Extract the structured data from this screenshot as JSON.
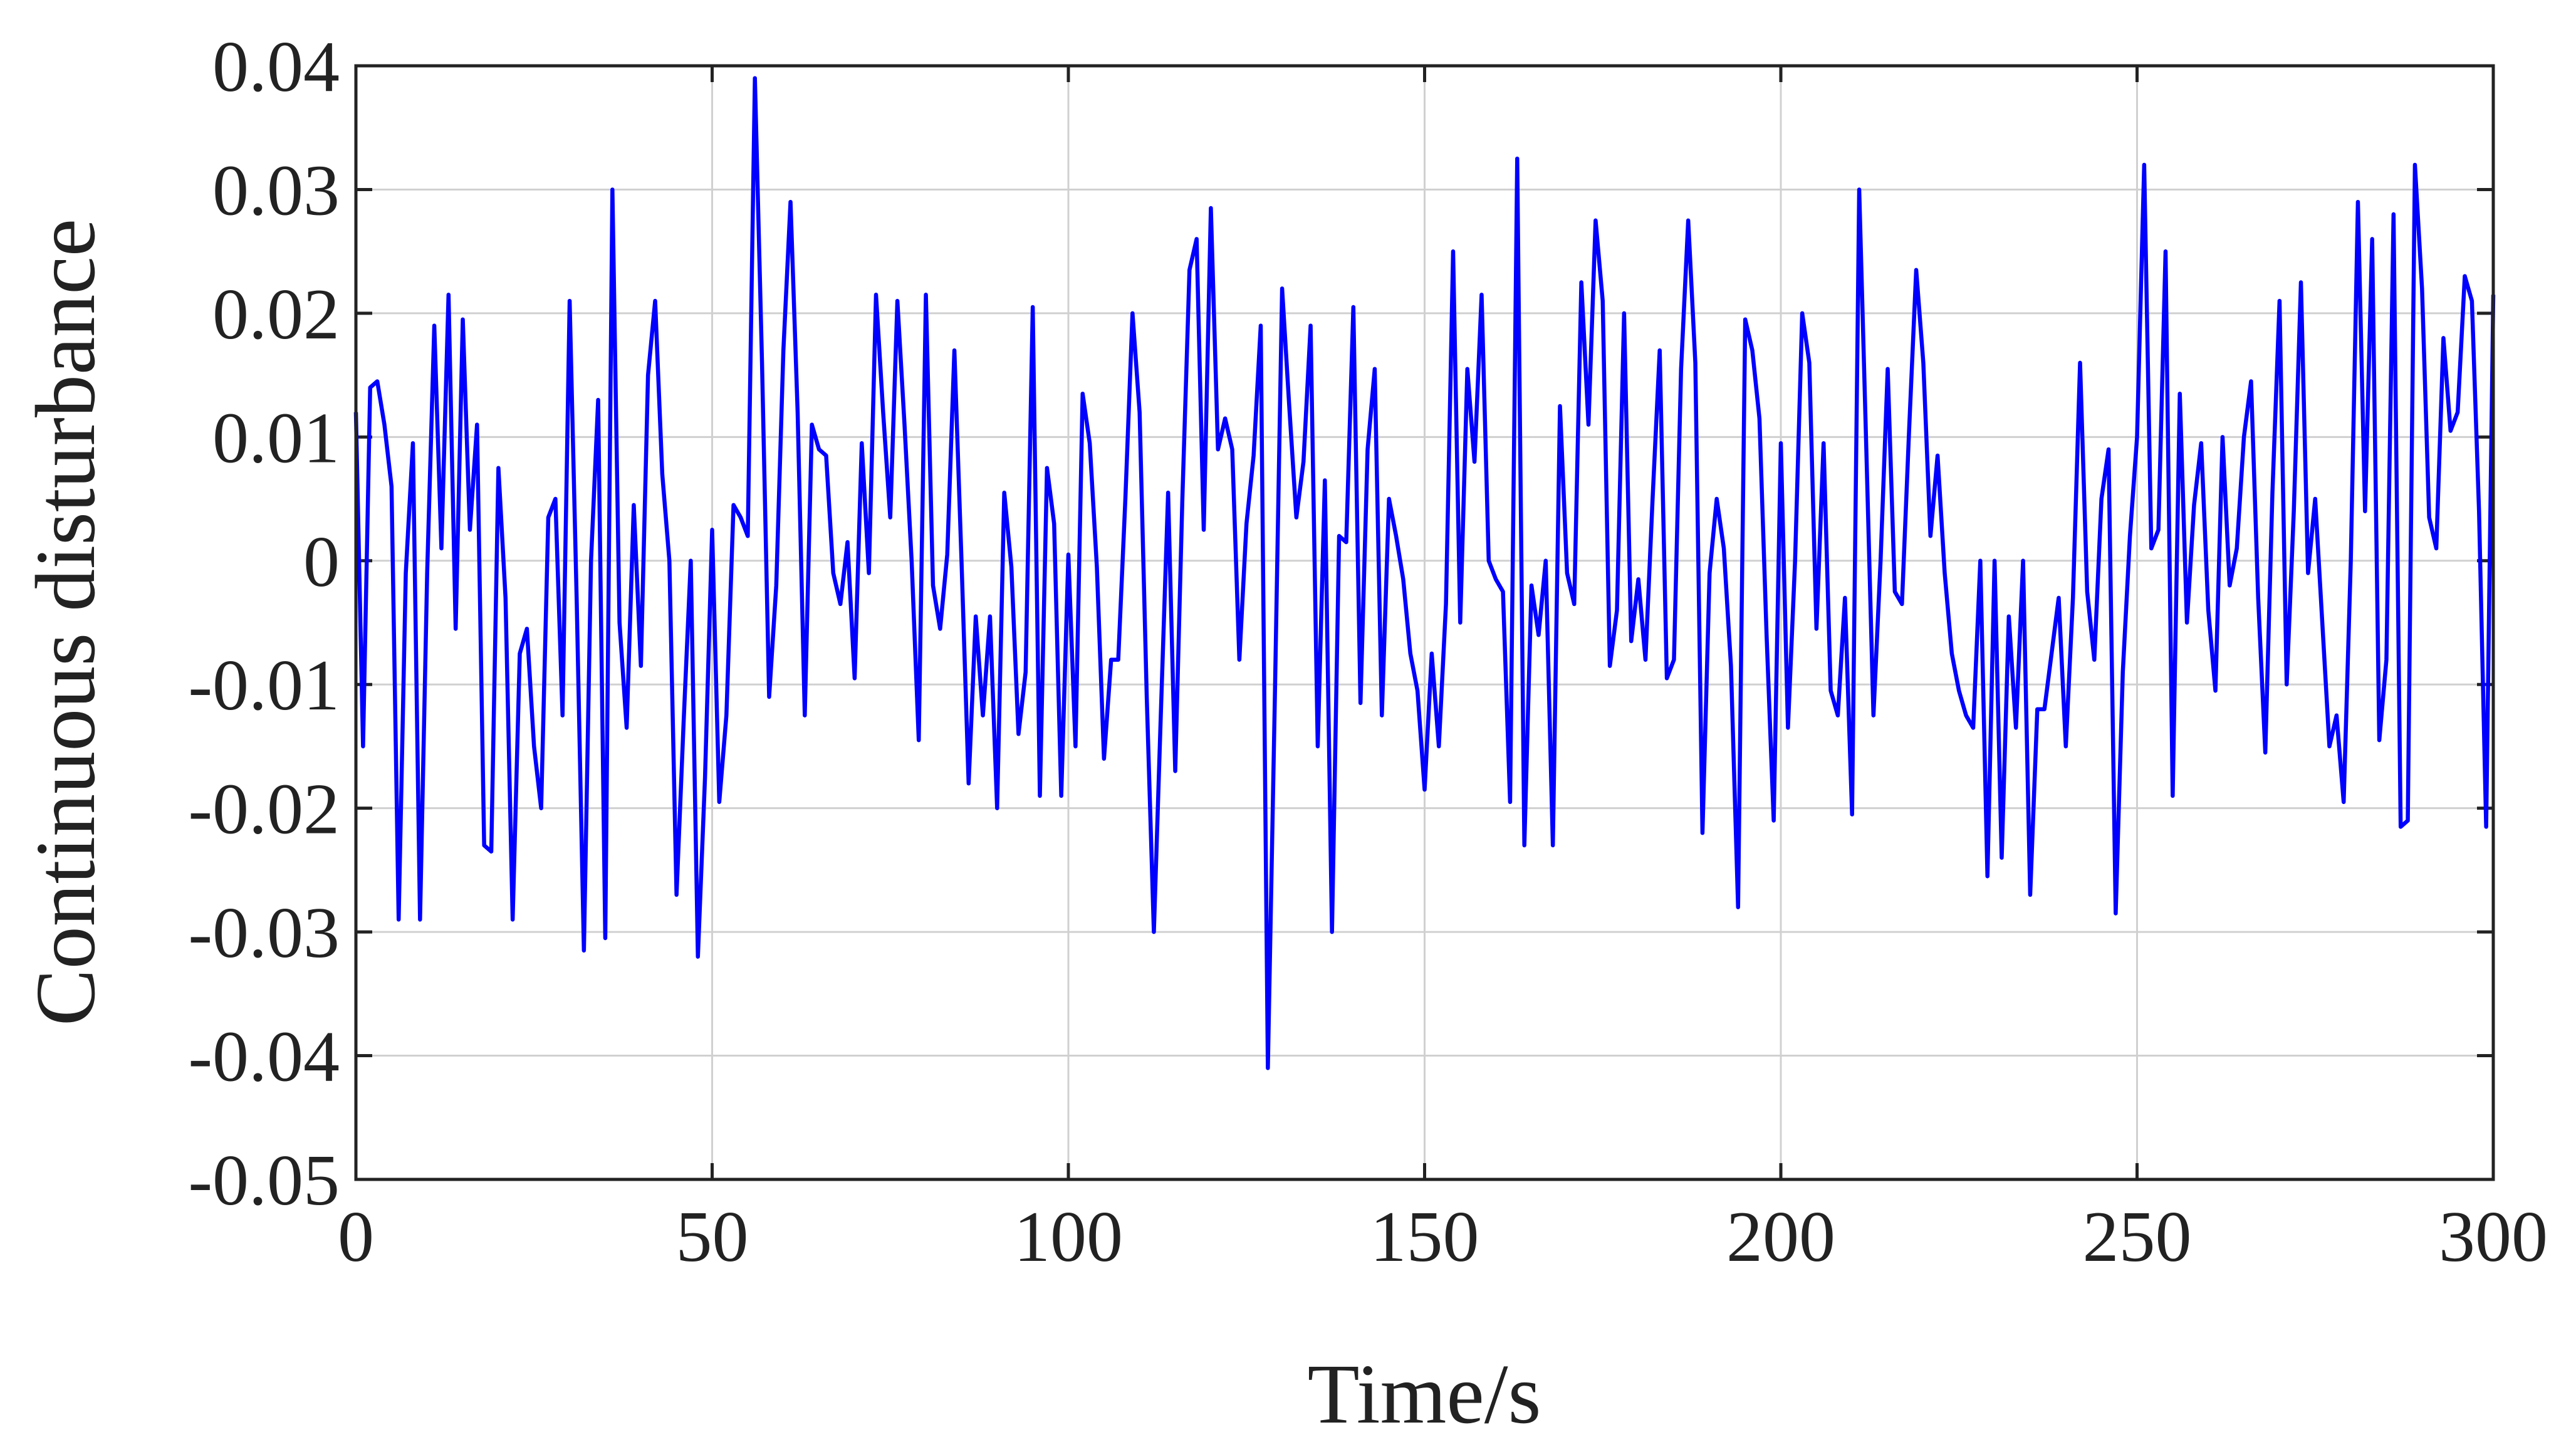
{
  "chart_data": {
    "type": "line",
    "xlabel": "Time/s",
    "ylabel": "Continuous disturbance",
    "color": "#0000ff",
    "grid": true,
    "xlim": [
      0,
      300
    ],
    "xticks": [
      0,
      50,
      100,
      150,
      200,
      250,
      300
    ],
    "ylim": [
      -0.05,
      0.04
    ],
    "yticks": [
      -0.05,
      -0.04,
      -0.03,
      -0.02,
      -0.01,
      0,
      0.01,
      0.02,
      0.03,
      0.04
    ],
    "x": [
      0,
      1,
      2,
      3,
      4,
      5,
      6,
      7,
      8,
      9,
      10,
      11,
      12,
      13,
      14,
      15,
      16,
      17,
      18,
      19,
      20,
      21,
      22,
      23,
      24,
      25,
      26,
      27,
      28,
      29,
      30,
      31,
      32,
      33,
      34,
      35,
      36,
      37,
      38,
      39,
      40,
      41,
      42,
      43,
      44,
      45,
      46,
      47,
      48,
      49,
      50,
      51,
      52,
      53,
      54,
      55,
      56,
      57,
      58,
      59,
      60,
      61,
      62,
      63,
      64,
      65,
      66,
      67,
      68,
      69,
      70,
      71,
      72,
      73,
      74,
      75,
      76,
      77,
      78,
      79,
      80,
      81,
      82,
      83,
      84,
      85,
      86,
      87,
      88,
      89,
      90,
      91,
      92,
      93,
      94,
      95,
      96,
      97,
      98,
      99,
      100,
      101,
      102,
      103,
      104,
      105,
      106,
      107,
      108,
      109,
      110,
      111,
      112,
      113,
      114,
      115,
      116,
      117,
      118,
      119,
      120,
      121,
      122,
      123,
      124,
      125,
      126,
      127,
      128,
      129,
      130,
      131,
      132,
      133,
      134,
      135,
      136,
      137,
      138,
      139,
      140,
      141,
      142,
      143,
      144,
      145,
      146,
      147,
      148,
      149,
      150,
      151,
      152,
      153,
      154,
      155,
      156,
      157,
      158,
      159,
      160,
      161,
      162,
      163,
      164,
      165,
      166,
      167,
      168,
      169,
      170,
      171,
      172,
      173,
      174,
      175,
      176,
      177,
      178,
      179,
      180,
      181,
      182,
      183,
      184,
      185,
      186,
      187,
      188,
      189,
      190,
      191,
      192,
      193,
      194,
      195,
      196,
      197,
      198,
      199,
      200,
      201,
      202,
      203,
      204,
      205,
      206,
      207,
      208,
      209,
      210,
      211,
      212,
      213,
      214,
      215,
      216,
      217,
      218,
      219,
      220,
      221,
      222,
      223,
      224,
      225,
      226,
      227,
      228,
      229,
      230,
      231,
      232,
      233,
      234,
      235,
      236,
      237,
      238,
      239,
      240,
      241,
      242,
      243,
      244,
      245,
      246,
      247,
      248,
      249,
      250,
      251,
      252,
      253,
      254,
      255,
      256,
      257,
      258,
      259,
      260,
      261,
      262,
      263,
      264,
      265,
      266,
      267,
      268,
      269,
      270,
      271,
      272,
      273,
      274,
      275,
      276,
      277,
      278,
      279,
      280,
      281,
      282,
      283,
      284,
      285,
      286,
      287,
      288,
      289,
      290,
      291,
      292,
      293,
      294,
      295,
      296,
      297,
      298,
      299,
      300
    ],
    "values": [
      0.012,
      -0.015,
      0.014,
      0.0145,
      0.011,
      0.006,
      -0.029,
      -0.001,
      0.0095,
      -0.029,
      -0.001,
      0.019,
      0.001,
      0.0215,
      -0.0055,
      0.0195,
      0.0025,
      0.011,
      -0.023,
      -0.0235,
      0.0075,
      -0.003,
      -0.029,
      -0.0075,
      -0.0055,
      -0.015,
      -0.02,
      0.0035,
      0.005,
      -0.0125,
      0.021,
      -0.0035,
      -0.0315,
      0.0,
      0.013,
      -0.0305,
      0.03,
      -0.005,
      -0.0135,
      0.0045,
      -0.0085,
      0.015,
      0.021,
      0.007,
      0.0,
      -0.027,
      -0.013,
      0.0,
      -0.032,
      -0.0175,
      0.0025,
      -0.0195,
      -0.0125,
      0.0045,
      0.0035,
      0.002,
      0.039,
      0.016,
      -0.011,
      -0.002,
      0.017,
      0.029,
      0.012,
      -0.0125,
      0.011,
      0.009,
      0.0085,
      -0.001,
      -0.0035,
      0.0015,
      -0.0095,
      0.0095,
      -0.001,
      0.0215,
      0.012,
      0.0035,
      0.021,
      0.011,
      0.0,
      -0.0145,
      0.0215,
      -0.002,
      -0.0055,
      0.0005,
      0.017,
      0.0,
      -0.018,
      -0.0045,
      -0.0125,
      -0.0045,
      -0.02,
      0.0055,
      -0.0005,
      -0.014,
      -0.009,
      0.0205,
      -0.019,
      0.0075,
      0.003,
      -0.019,
      0.0005,
      -0.015,
      0.0135,
      0.0095,
      -0.0005,
      -0.016,
      -0.008,
      -0.008,
      0.005,
      0.02,
      0.012,
      -0.011,
      -0.03,
      -0.012,
      0.0055,
      -0.017,
      0.005,
      0.0235,
      0.026,
      0.0025,
      0.0285,
      0.009,
      0.0115,
      0.009,
      -0.008,
      0.003,
      0.0085,
      0.019,
      -0.041,
      -0.0105,
      0.022,
      0.0125,
      0.0035,
      0.008,
      0.019,
      -0.015,
      0.0065,
      -0.03,
      0.002,
      0.0015,
      0.0205,
      -0.0115,
      0.009,
      0.0155,
      -0.0125,
      0.005,
      0.002,
      -0.0015,
      -0.0075,
      -0.0105,
      -0.0185,
      -0.0075,
      -0.015,
      -0.0035,
      0.025,
      -0.005,
      0.0155,
      0.008,
      0.0215,
      0.0,
      -0.0015,
      -0.0025,
      -0.0195,
      0.0325,
      -0.023,
      -0.002,
      -0.006,
      0.0,
      -0.023,
      0.0125,
      -0.001,
      -0.0035,
      0.0225,
      0.011,
      0.0275,
      0.021,
      -0.0085,
      -0.004,
      0.02,
      -0.0065,
      -0.0015,
      -0.008,
      0.005,
      0.017,
      -0.0095,
      -0.008,
      0.0155,
      0.0275,
      0.016,
      -0.022,
      -0.001,
      0.005,
      0.001,
      -0.0085,
      -0.028,
      0.0195,
      0.017,
      0.0115,
      -0.006,
      -0.021,
      0.0095,
      -0.0135,
      0.0,
      0.02,
      0.016,
      -0.0055,
      0.0095,
      -0.0105,
      -0.0125,
      -0.003,
      -0.0205,
      0.03,
      0.009,
      -0.0125,
      0.0,
      0.0155,
      -0.0025,
      -0.0035,
      0.0105,
      0.0235,
      0.016,
      0.002,
      0.0085,
      -0.001,
      -0.0075,
      -0.0105,
      -0.0125,
      -0.0135,
      0.0,
      -0.0255,
      0.0,
      -0.024,
      -0.0045,
      -0.0135,
      0.0,
      -0.027,
      -0.012,
      -0.012,
      -0.0075,
      -0.003,
      -0.015,
      -0.003,
      0.016,
      -0.0025,
      -0.008,
      0.005,
      0.009,
      -0.0285,
      -0.009,
      0.002,
      0.01,
      0.032,
      0.001,
      0.0025,
      0.025,
      -0.019,
      0.0135,
      -0.005,
      0.0045,
      0.0095,
      -0.004,
      -0.0105,
      0.01,
      -0.002,
      0.001,
      0.01,
      0.0145,
      -0.003,
      -0.0155,
      0.0055,
      0.021,
      -0.01,
      0.004,
      0.0225,
      -0.001,
      0.005,
      -0.005,
      -0.015,
      -0.0125,
      -0.0195,
      0.0,
      0.029,
      0.004,
      0.026,
      -0.0145,
      -0.008,
      0.028,
      -0.0215,
      -0.021,
      0.032,
      0.022,
      0.0035,
      0.001,
      0.018,
      0.0105,
      0.012,
      0.023,
      0.021,
      0.004,
      -0.0215,
      0.0215
    ]
  }
}
